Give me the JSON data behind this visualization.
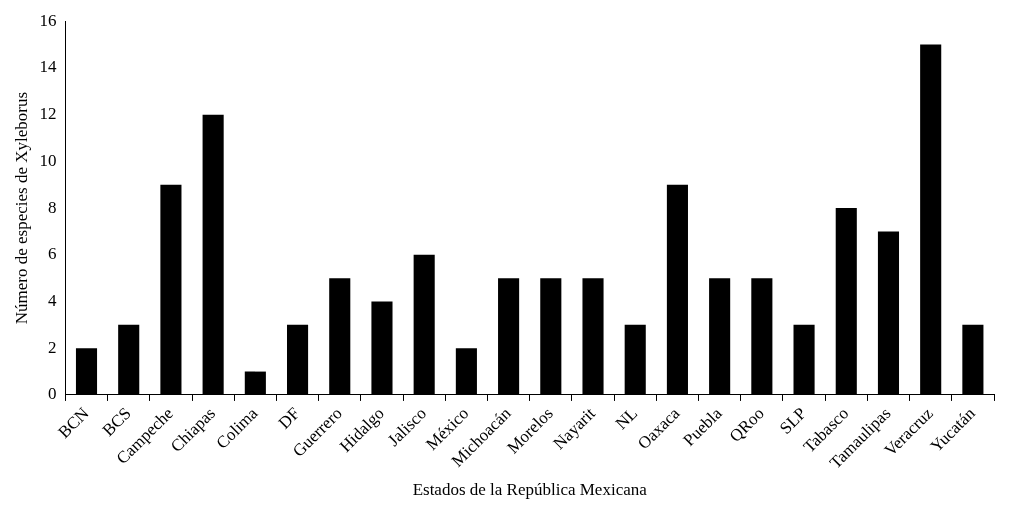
{
  "chart_data": {
    "type": "bar",
    "xlabel": "Estados de la República Mexicana",
    "ylabel": "Número de especies de Xyleborus",
    "categories": [
      "BCN",
      "BCS",
      "Campeche",
      "Chiapas",
      "Colima",
      "DF",
      "Guerrero",
      "Hidalgo",
      "Jalisco",
      "México",
      "Michoacán",
      "Morelos",
      "Nayarit",
      "NL",
      "Oaxaca",
      "Puebla",
      "QRoo",
      "SLP",
      "Tabasco",
      "Tamaulipas",
      "Veracruz",
      "Yucatán"
    ],
    "values": [
      2,
      3,
      9,
      12,
      1,
      3,
      5,
      4,
      6,
      2,
      5,
      5,
      5,
      3,
      9,
      5,
      5,
      3,
      8,
      7,
      15,
      3
    ],
    "color": "#000000",
    "ylim": [
      0,
      16
    ],
    "yticks": [
      0,
      2,
      4,
      6,
      8,
      10,
      12,
      14,
      16
    ],
    "grid": false,
    "legend": false
  }
}
